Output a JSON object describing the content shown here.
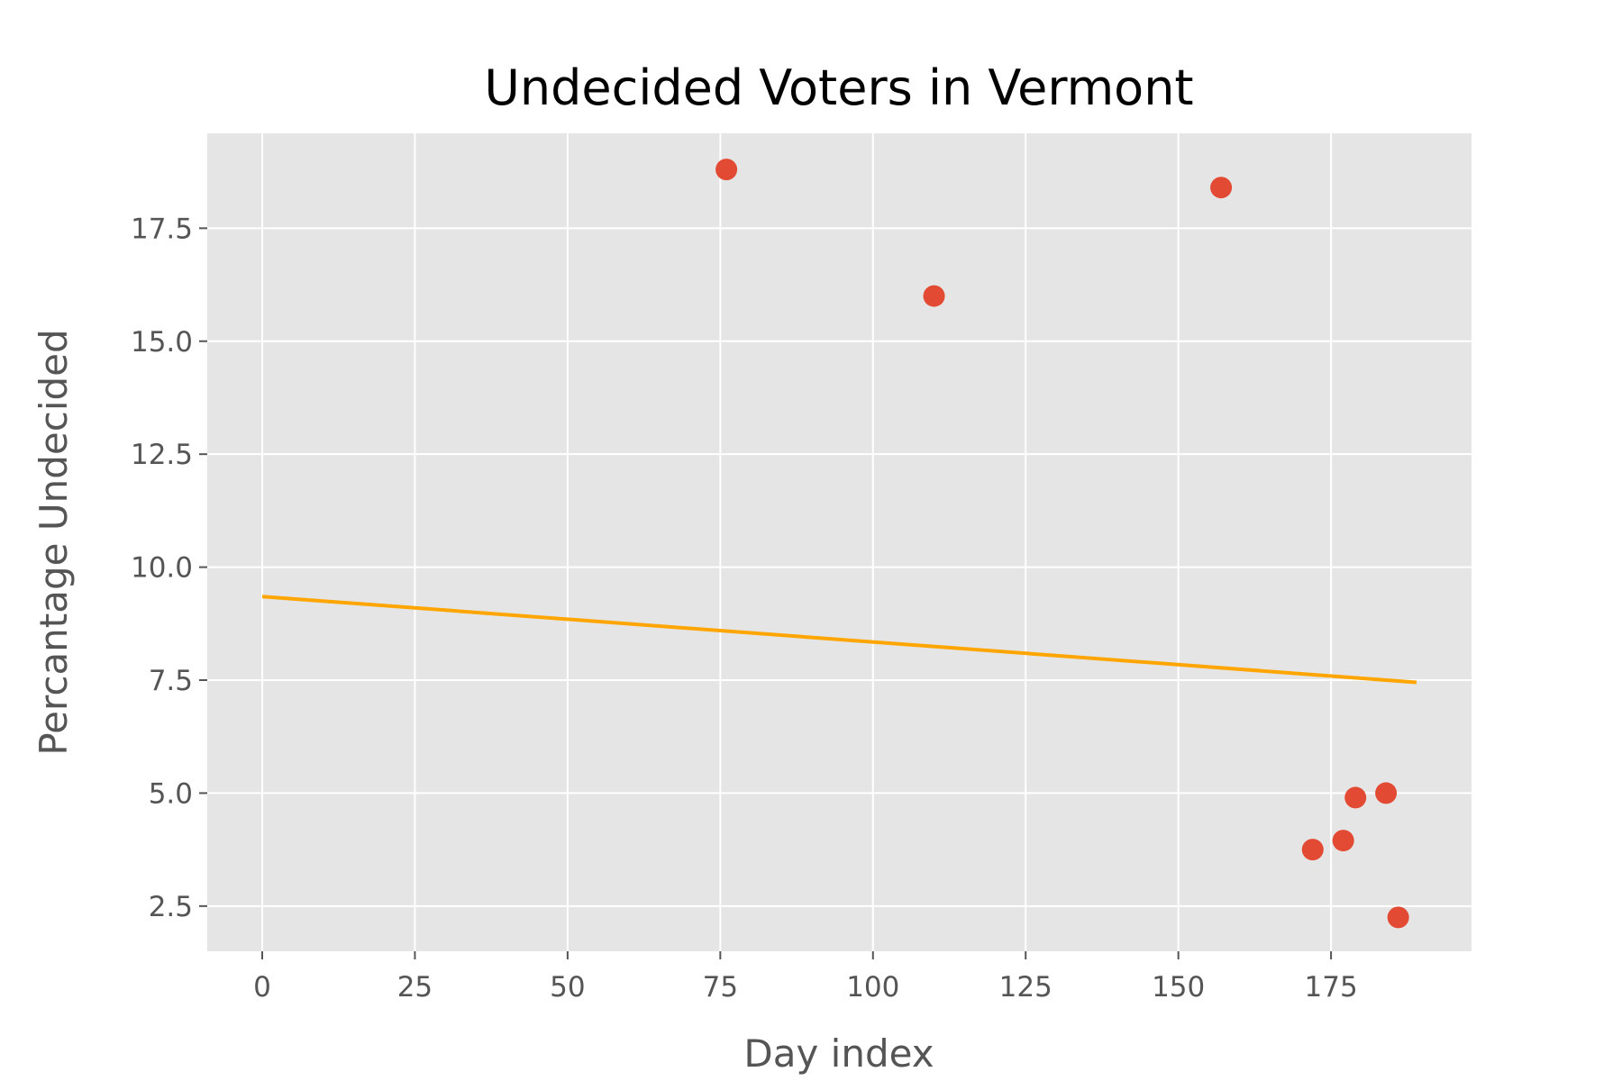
{
  "chart_data": {
    "type": "scatter",
    "title": "Undecided Voters in Vermont",
    "xlabel": "Day index",
    "ylabel": "Percantage Undecided",
    "xlim": [
      -9,
      198
    ],
    "ylim": [
      1.5,
      19.6
    ],
    "x_ticks": [
      0,
      25,
      50,
      75,
      100,
      125,
      150,
      175
    ],
    "x_tick_labels": [
      "0",
      "25",
      "50",
      "75",
      "100",
      "125",
      "150",
      "175"
    ],
    "y_ticks": [
      2.5,
      5.0,
      7.5,
      10.0,
      12.5,
      15.0,
      17.5
    ],
    "y_tick_labels": [
      "2.5",
      "5.0",
      "7.5",
      "10.0",
      "12.5",
      "15.0",
      "17.5"
    ],
    "grid": true,
    "points": [
      {
        "x": 76,
        "y": 18.8
      },
      {
        "x": 110,
        "y": 16.0
      },
      {
        "x": 157,
        "y": 18.4
      },
      {
        "x": 172,
        "y": 3.75
      },
      {
        "x": 177,
        "y": 3.95
      },
      {
        "x": 179,
        "y": 4.9
      },
      {
        "x": 184,
        "y": 5.0
      },
      {
        "x": 186,
        "y": 2.25
      }
    ],
    "trend_line": {
      "x": [
        0,
        189
      ],
      "y": [
        9.35,
        7.45
      ]
    },
    "colors": {
      "points": "#e24a33",
      "trend_line": "#ffa500",
      "plot_background": "#e5e5e5",
      "grid": "#ffffff"
    }
  }
}
